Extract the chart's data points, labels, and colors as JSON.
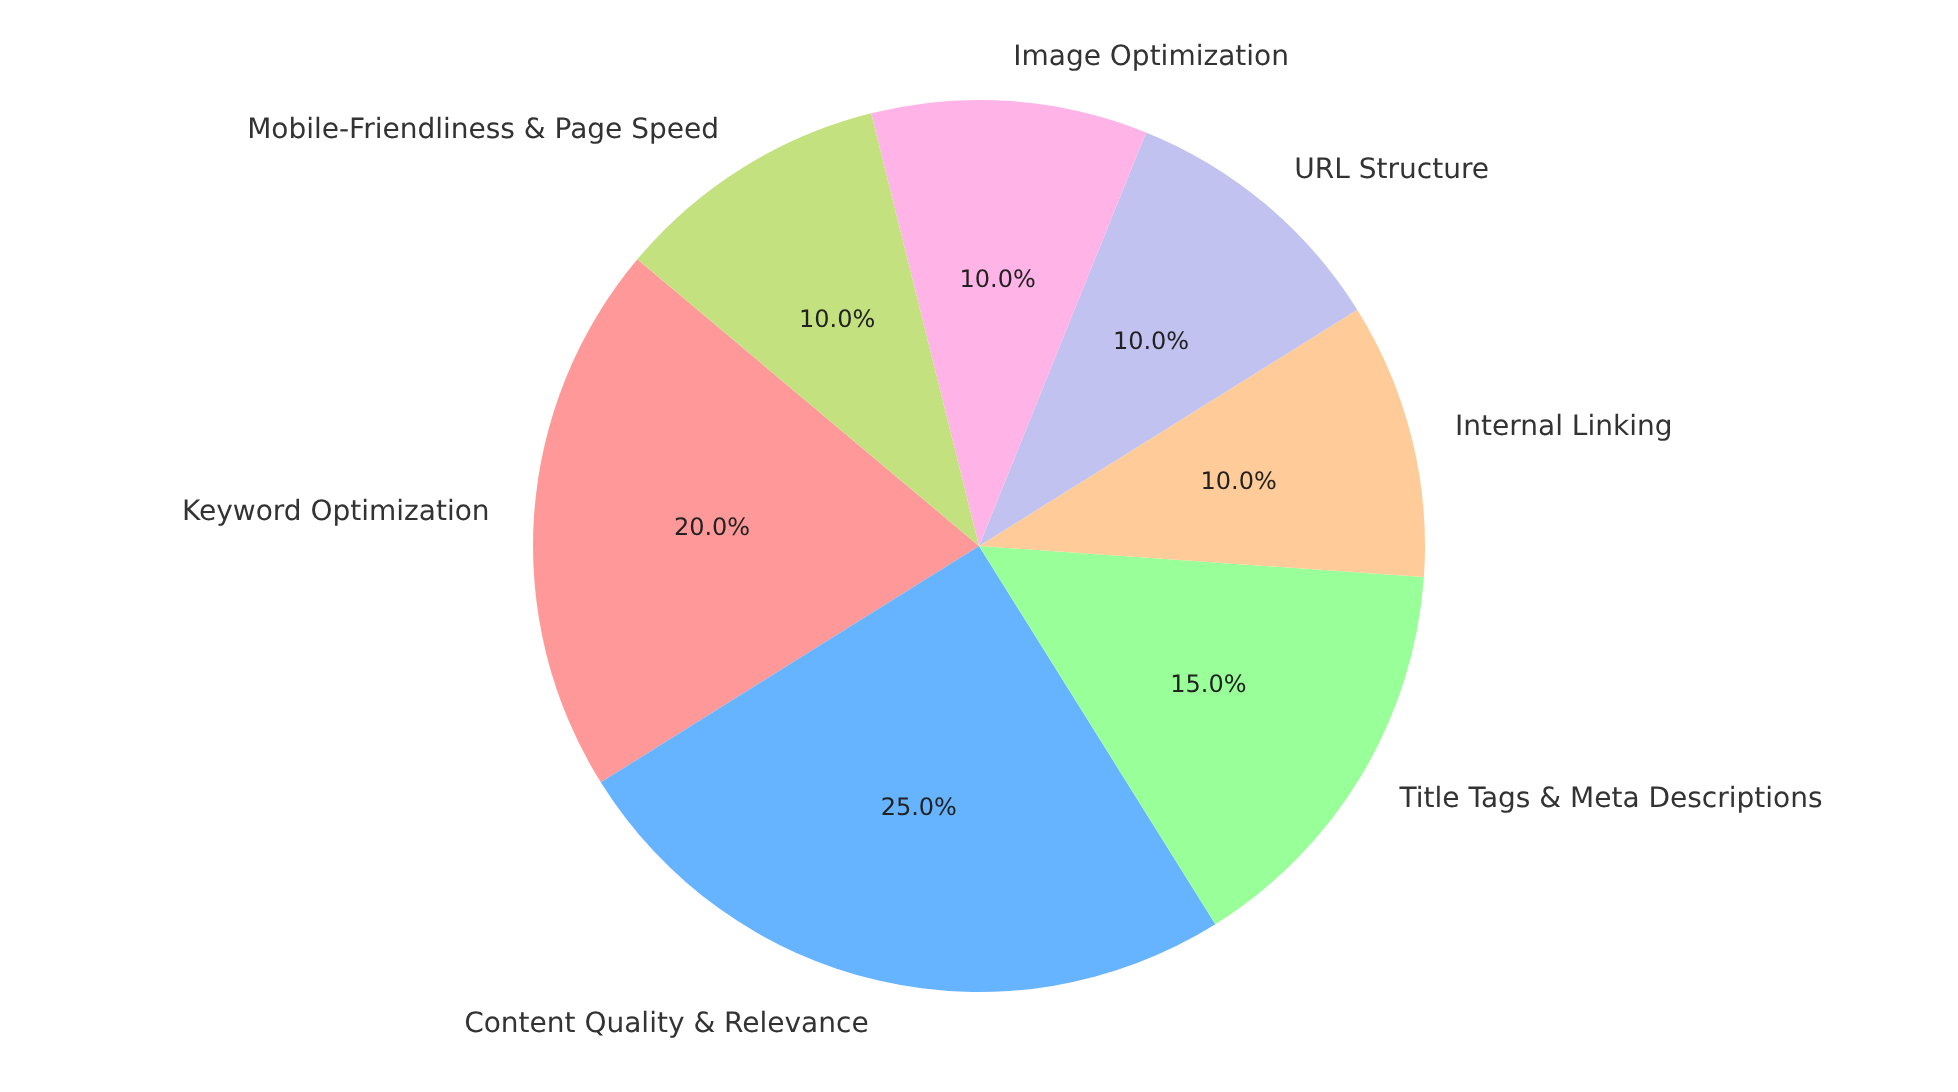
{
  "chart_data": {
    "type": "pie",
    "categories": [
      "Keyword Optimization",
      "Content Quality & Relevance",
      "Title Tags & Meta Descriptions",
      "Internal Linking",
      "URL Structure",
      "Image Optimization",
      "Mobile-Friendliness & Page Speed"
    ],
    "values": [
      20,
      25,
      15,
      10,
      10,
      10,
      10
    ],
    "colors": [
      "#ff9999",
      "#66b3ff",
      "#99ff99",
      "#ffcc99",
      "#c2c2f0",
      "#ffb3e6",
      "#c4e17f"
    ],
    "value_labels": [
      "20.0%",
      "25.0%",
      "15.0%",
      "10.0%",
      "10.0%",
      "10.0%",
      "10.0%"
    ]
  }
}
